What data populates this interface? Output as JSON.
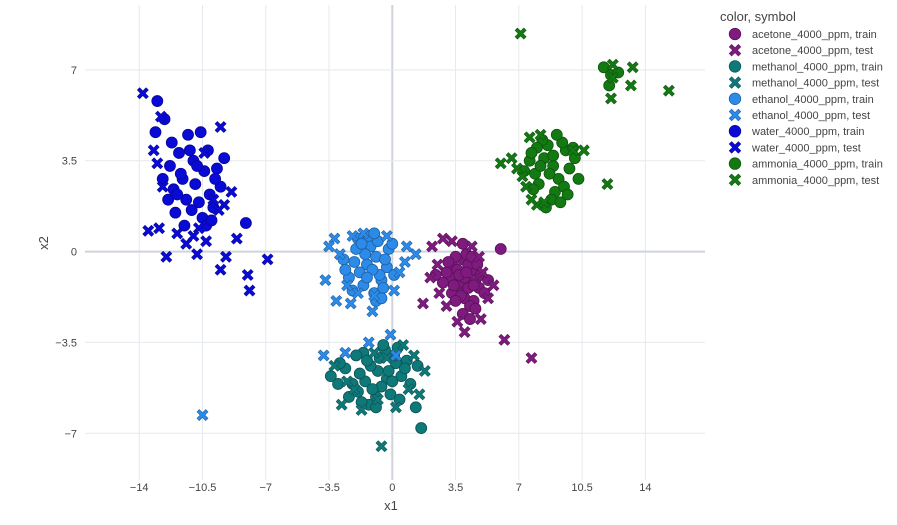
{
  "chart_data": {
    "type": "scatter",
    "title": "",
    "xlabel": "x1",
    "ylabel": "x2",
    "xlim": [
      -17,
      17.3
    ],
    "ylim": [
      -8.8,
      9.5
    ],
    "x_ticks": [
      -14,
      -10.5,
      -7,
      -3.5,
      0,
      3.5,
      7,
      10.5,
      14
    ],
    "x_tick_labels": [
      "−14",
      "−10.5",
      "−7",
      "−3.5",
      "0",
      "3.5",
      "7",
      "10.5",
      "14"
    ],
    "y_ticks": [
      -7,
      -3.5,
      0,
      3.5,
      7
    ],
    "y_tick_labels": [
      "−7",
      "−3.5",
      "0",
      "3.5",
      "7"
    ],
    "grid": true,
    "legend": {
      "title": "color, symbol",
      "position": "right",
      "entries": [
        {
          "label": "acetone_4000_ppm, train",
          "color": "#7f1a7f",
          "symbol": "circle"
        },
        {
          "label": "acetone_4000_ppm, test",
          "color": "#7f1a7f",
          "symbol": "x"
        },
        {
          "label": "methanol_4000_ppm, train",
          "color": "#0f7878",
          "symbol": "circle"
        },
        {
          "label": "methanol_4000_ppm, test",
          "color": "#0f7878",
          "symbol": "x"
        },
        {
          "label": "ethanol_4000_ppm, train",
          "color": "#2c8ae8",
          "symbol": "circle"
        },
        {
          "label": "ethanol_4000_ppm, test",
          "color": "#2c8ae8",
          "symbol": "x"
        },
        {
          "label": "water_4000_ppm, train",
          "color": "#0a0ad6",
          "symbol": "circle"
        },
        {
          "label": "water_4000_ppm, test",
          "color": "#0a0ad6",
          "symbol": "x"
        },
        {
          "label": "ammonia_4000_ppm, train",
          "color": "#137a13",
          "symbol": "circle"
        },
        {
          "label": "ammonia_4000_ppm, test",
          "color": "#137a13",
          "symbol": "x"
        }
      ]
    },
    "series": [
      {
        "key": "acetone_train",
        "color": "#7f1a7f",
        "symbol": "circle",
        "points": [
          [
            3.4,
            -0.6
          ],
          [
            3.8,
            -0.9
          ],
          [
            4.1,
            -1.2
          ],
          [
            3.6,
            -1.5
          ],
          [
            4.4,
            -0.7
          ],
          [
            3.9,
            -0.3
          ],
          [
            4.6,
            -1.1
          ],
          [
            3.2,
            -1.0
          ],
          [
            4.0,
            -1.8
          ],
          [
            4.8,
            -1.4
          ],
          [
            3.5,
            -0.2
          ],
          [
            4.2,
            -0.5
          ],
          [
            3.0,
            -0.8
          ],
          [
            4.5,
            -1.9
          ],
          [
            3.7,
            -1.2
          ],
          [
            4.3,
            -2.1
          ],
          [
            3.9,
            -2.4
          ],
          [
            4.9,
            -0.9
          ],
          [
            3.3,
            -1.6
          ],
          [
            4.1,
            -0.1
          ],
          [
            2.8,
            -1.2
          ],
          [
            5.1,
            -1.6
          ],
          [
            4.4,
            -0.2
          ],
          [
            3.6,
            -0.7
          ],
          [
            4.0,
            -1.0
          ],
          [
            3.8,
            -1.7
          ],
          [
            4.7,
            -0.5
          ],
          [
            3.1,
            -0.4
          ],
          [
            4.2,
            -1.4
          ],
          [
            3.5,
            -1.9
          ],
          [
            4.6,
            -2.2
          ],
          [
            2.4,
            -0.9
          ],
          [
            5.3,
            -1.1
          ],
          [
            3.9,
            0.3
          ],
          [
            4.3,
            -2.6
          ],
          [
            6.0,
            0.1
          ],
          [
            3.7,
            -0.9
          ],
          [
            4.5,
            -1.3
          ],
          [
            3.4,
            -1.3
          ],
          [
            4.1,
            -0.8
          ]
        ]
      },
      {
        "key": "acetone_test",
        "color": "#7f1a7f",
        "symbol": "x",
        "points": [
          [
            2.8,
            0.5
          ],
          [
            2.2,
            0.2
          ],
          [
            5.6,
            -1.3
          ],
          [
            6.2,
            -3.4
          ],
          [
            7.7,
            -4.1
          ],
          [
            4.0,
            -3.1
          ],
          [
            4.9,
            -2.6
          ],
          [
            1.7,
            -2.0
          ],
          [
            2.6,
            -1.6
          ],
          [
            3.3,
            0.4
          ],
          [
            4.8,
            -0.2
          ],
          [
            5.3,
            -1.8
          ],
          [
            3.0,
            -2.1
          ],
          [
            2.1,
            -1.0
          ],
          [
            5.0,
            -0.8
          ],
          [
            3.6,
            -2.7
          ],
          [
            4.4,
            0.2
          ],
          [
            2.5,
            -0.5
          ]
        ]
      },
      {
        "key": "methanol_train",
        "color": "#0f7878",
        "symbol": "circle",
        "points": [
          [
            -0.8,
            -4.6
          ],
          [
            -0.3,
            -4.9
          ],
          [
            -1.2,
            -4.4
          ],
          [
            0.2,
            -4.3
          ],
          [
            -0.6,
            -5.2
          ],
          [
            -1.5,
            -5.0
          ],
          [
            0.5,
            -4.8
          ],
          [
            -0.1,
            -5.5
          ],
          [
            -1.8,
            -4.7
          ],
          [
            0.8,
            -4.2
          ],
          [
            -0.9,
            -5.6
          ],
          [
            -2.2,
            -5.1
          ],
          [
            0.1,
            -4.0
          ],
          [
            -0.4,
            -3.8
          ],
          [
            -1.3,
            -5.9
          ],
          [
            1.0,
            -5.1
          ],
          [
            -2.6,
            -4.5
          ],
          [
            -0.7,
            -4.1
          ],
          [
            0.4,
            -5.7
          ],
          [
            -1.6,
            -3.9
          ],
          [
            1.3,
            -6.0
          ],
          [
            1.6,
            -6.8
          ],
          [
            -3.0,
            -5.1
          ],
          [
            -2.4,
            -5.6
          ],
          [
            -1.1,
            -5.3
          ],
          [
            -0.2,
            -4.6
          ],
          [
            -3.4,
            -4.8
          ],
          [
            0.7,
            -4.5
          ],
          [
            -1.9,
            -5.4
          ],
          [
            -0.5,
            -3.6
          ],
          [
            -1.4,
            -4.2
          ],
          [
            -2.9,
            -4.3
          ],
          [
            1.4,
            -4.4
          ],
          [
            -0.9,
            -6.0
          ],
          [
            0.0,
            -5.0
          ],
          [
            -1.7,
            -5.8
          ],
          [
            -2.0,
            -4.0
          ],
          [
            0.3,
            -3.7
          ]
        ]
      },
      {
        "key": "methanol_test",
        "color": "#0f7878",
        "symbol": "x",
        "points": [
          [
            -0.6,
            -7.5
          ],
          [
            -2.1,
            -5.3
          ],
          [
            -2.8,
            -5.9
          ],
          [
            -3.2,
            -4.4
          ],
          [
            0.6,
            -3.6
          ],
          [
            1.2,
            -4.0
          ],
          [
            -1.0,
            -3.9
          ],
          [
            -1.7,
            -6.1
          ],
          [
            1.8,
            -4.6
          ],
          [
            0.9,
            -5.3
          ],
          [
            -0.3,
            -4.1
          ],
          [
            1.5,
            -5.5
          ],
          [
            -2.5,
            -5.0
          ],
          [
            -0.8,
            -5.7
          ],
          [
            0.2,
            -6.0
          ]
        ]
      },
      {
        "key": "ethanol_train",
        "color": "#2c8ae8",
        "symbol": "circle",
        "points": [
          [
            -1.4,
            -0.5
          ],
          [
            -0.9,
            -0.2
          ],
          [
            -1.8,
            -0.8
          ],
          [
            -0.6,
            -1.1
          ],
          [
            -1.2,
            0.2
          ],
          [
            -2.1,
            -0.4
          ],
          [
            -0.3,
            -0.6
          ],
          [
            -1.6,
            -1.3
          ],
          [
            -0.8,
            0.4
          ],
          [
            -2.4,
            -1.0
          ],
          [
            -0.2,
            0.1
          ],
          [
            -1.0,
            -1.6
          ],
          [
            -1.9,
            0.5
          ],
          [
            -0.5,
            -1.4
          ],
          [
            -2.7,
            -0.3
          ],
          [
            0.1,
            -0.9
          ],
          [
            -1.3,
            0.6
          ],
          [
            -2.2,
            -1.5
          ],
          [
            -0.7,
            -0.9
          ],
          [
            -1.5,
            -0.1
          ],
          [
            0.0,
            0.3
          ],
          [
            -2.0,
            0.1
          ],
          [
            -1.1,
            -0.7
          ],
          [
            -0.4,
            -0.3
          ],
          [
            -2.6,
            -0.7
          ],
          [
            -1.7,
            0.3
          ],
          [
            -1.0,
            0.7
          ],
          [
            -0.9,
            -1.9
          ],
          [
            -0.6,
            -1.8
          ],
          [
            -1.4,
            -1.0
          ]
        ]
      },
      {
        "key": "ethanol_test",
        "color": "#2c8ae8",
        "symbol": "x",
        "points": [
          [
            -10.5,
            -6.3
          ],
          [
            -3.8,
            -4.0
          ],
          [
            -2.6,
            -3.9
          ],
          [
            -1.3,
            -3.5
          ],
          [
            -0.1,
            -3.2
          ],
          [
            0.2,
            -4.0
          ],
          [
            -3.7,
            -1.1
          ],
          [
            -3.1,
            -1.9
          ],
          [
            -3.2,
            0.5
          ],
          [
            -2.3,
            -2.0
          ],
          [
            -1.0,
            -1.7
          ],
          [
            1.3,
            -0.1
          ],
          [
            0.8,
            0.2
          ],
          [
            -2.9,
            -0.1
          ],
          [
            -2.2,
            0.6
          ],
          [
            -1.6,
            0.7
          ],
          [
            -0.3,
            0.6
          ],
          [
            0.4,
            -0.8
          ],
          [
            0.7,
            -0.4
          ],
          [
            -3.5,
            0.2
          ],
          [
            -1.1,
            -2.3
          ],
          [
            -2.5,
            -1.3
          ],
          [
            0.1,
            -1.5
          ],
          [
            -1.9,
            -1.6
          ]
        ]
      },
      {
        "key": "water_train",
        "color": "#0a0ad6",
        "symbol": "circle",
        "points": [
          [
            -13.0,
            5.8
          ],
          [
            -12.6,
            5.1
          ],
          [
            -13.1,
            4.6
          ],
          [
            -11.3,
            4.5
          ],
          [
            -10.6,
            4.6
          ],
          [
            -10.2,
            3.9
          ],
          [
            -11.8,
            3.8
          ],
          [
            -12.3,
            3.3
          ],
          [
            -11.0,
            3.5
          ],
          [
            -10.4,
            3.1
          ],
          [
            -11.6,
            2.8
          ],
          [
            -12.1,
            2.4
          ],
          [
            -10.9,
            2.6
          ],
          [
            -9.7,
            3.2
          ],
          [
            -9.5,
            2.5
          ],
          [
            -11.4,
            2.0
          ],
          [
            -12.4,
            2.0
          ],
          [
            -10.7,
            1.9
          ],
          [
            -10.1,
            2.2
          ],
          [
            -11.1,
            1.6
          ],
          [
            -12.0,
            1.5
          ],
          [
            -10.5,
            1.3
          ],
          [
            -9.9,
            1.7
          ],
          [
            -11.7,
            3.0
          ],
          [
            -11.2,
            3.9
          ],
          [
            -10.8,
            3.3
          ],
          [
            -12.7,
            2.8
          ],
          [
            -9.3,
            3.6
          ],
          [
            -8.1,
            1.1
          ],
          [
            -11.5,
            1.0
          ],
          [
            -10.3,
            1.0
          ],
          [
            -12.2,
            4.2
          ],
          [
            -9.8,
            2.8
          ],
          [
            -11.9,
            2.2
          ],
          [
            -10.0,
            1.2
          ]
        ]
      },
      {
        "key": "water_test",
        "color": "#0a0ad6",
        "symbol": "x",
        "points": [
          [
            -13.8,
            6.1
          ],
          [
            -12.8,
            5.2
          ],
          [
            -9.5,
            4.8
          ],
          [
            -13.2,
            3.9
          ],
          [
            -13.5,
            0.8
          ],
          [
            -12.9,
            0.9
          ],
          [
            -12.5,
            -0.2
          ],
          [
            -10.3,
            0.4
          ],
          [
            -10.7,
            0.9
          ],
          [
            -9.2,
            -0.2
          ],
          [
            -9.5,
            -0.7
          ],
          [
            -8.6,
            0.5
          ],
          [
            -8.0,
            -0.9
          ],
          [
            -7.9,
            -1.5
          ],
          [
            -6.9,
            -0.3
          ],
          [
            -8.9,
            2.3
          ],
          [
            -9.3,
            1.8
          ],
          [
            -10.8,
            -0.1
          ],
          [
            -11.9,
            0.7
          ],
          [
            -11.4,
            0.3
          ],
          [
            -12.7,
            2.5
          ],
          [
            -13.0,
            3.4
          ],
          [
            -9.6,
            1.6
          ],
          [
            -10.4,
            3.8
          ],
          [
            -9.9,
            2.0
          ],
          [
            -11.0,
            0.6
          ]
        ]
      },
      {
        "key": "ammonia_train",
        "color": "#137a13",
        "symbol": "circle",
        "points": [
          [
            8.4,
            3.6
          ],
          [
            8.9,
            3.3
          ],
          [
            7.9,
            3.0
          ],
          [
            9.2,
            2.8
          ],
          [
            8.6,
            4.1
          ],
          [
            9.6,
            3.9
          ],
          [
            8.1,
            2.6
          ],
          [
            9.0,
            2.3
          ],
          [
            7.6,
            3.5
          ],
          [
            9.8,
            3.2
          ],
          [
            8.3,
            4.3
          ],
          [
            8.8,
            2.0
          ],
          [
            9.4,
            4.2
          ],
          [
            7.8,
            2.4
          ],
          [
            10.1,
            3.6
          ],
          [
            8.5,
            1.7
          ],
          [
            9.3,
            1.9
          ],
          [
            7.3,
            3.1
          ],
          [
            10.3,
            2.8
          ],
          [
            9.1,
            4.5
          ],
          [
            8.0,
            4.0
          ],
          [
            8.7,
            3.0
          ],
          [
            9.5,
            2.5
          ],
          [
            7.7,
            3.8
          ],
          [
            11.7,
            7.1
          ],
          [
            12.1,
            6.8
          ],
          [
            12.0,
            6.4
          ],
          [
            12.5,
            6.9
          ],
          [
            10.0,
            4.0
          ],
          [
            8.2,
            3.3
          ],
          [
            9.7,
            2.2
          ],
          [
            8.9,
            3.7
          ]
        ]
      },
      {
        "key": "ammonia_test",
        "color": "#137a13",
        "symbol": "x",
        "points": [
          [
            7.1,
            8.4
          ],
          [
            12.2,
            7.2
          ],
          [
            13.3,
            7.1
          ],
          [
            13.2,
            6.4
          ],
          [
            12.1,
            5.9
          ],
          [
            15.3,
            6.2
          ],
          [
            12.2,
            6.7
          ],
          [
            11.9,
            2.6
          ],
          [
            10.6,
            3.9
          ],
          [
            10.0,
            3.9
          ],
          [
            6.0,
            3.4
          ],
          [
            6.6,
            3.6
          ],
          [
            7.4,
            2.5
          ],
          [
            8.0,
            1.8
          ],
          [
            7.7,
            2.0
          ],
          [
            8.4,
            1.9
          ],
          [
            7.6,
            4.4
          ],
          [
            8.2,
            4.5
          ],
          [
            7.2,
            2.9
          ],
          [
            6.9,
            3.2
          ]
        ]
      }
    ]
  }
}
